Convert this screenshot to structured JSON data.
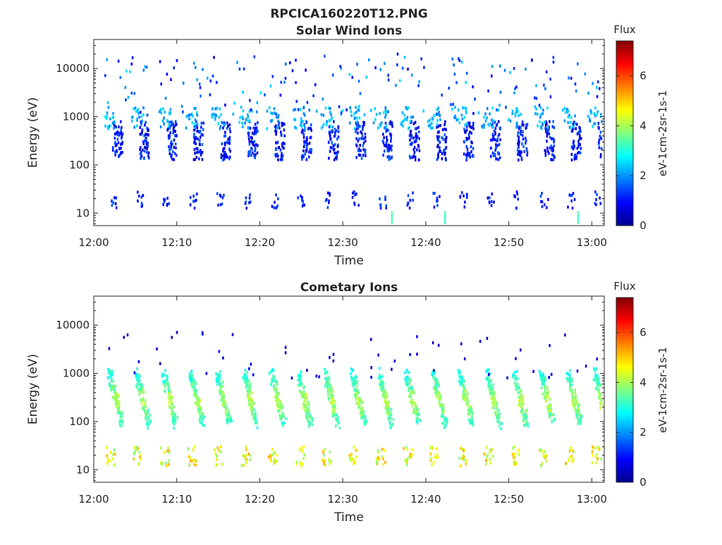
{
  "chart_data": {
    "main_title": "RPCICA160220T12.PNG",
    "panels": [
      {
        "type": "heatmap",
        "title": "Solar Wind Ions",
        "xlabel": "Time",
        "ylabel": "Energy (eV)",
        "y_scale": "log",
        "ylim": [
          5.5,
          40000
        ],
        "xlim_minutes": [
          0,
          61.5
        ],
        "x_ticks": [
          "12:00",
          "12:10",
          "12:20",
          "12:30",
          "12:40",
          "12:50",
          "13:00"
        ],
        "y_ticks": [
          "10",
          "100",
          "1000",
          "10000"
        ],
        "colorbar": {
          "title": "Flux",
          "label": "eV-1cm-2sr-1s-1",
          "range": [
            0,
            7.4
          ],
          "ticks": [
            "0",
            "2",
            "4",
            "6"
          ]
        },
        "pattern": "Periodic ion bursts roughly every 3.3 minutes at 100-1000 eV with low flux (0.5-2.5); a sparse band near 20 eV; scattered points up to 20000 eV."
      },
      {
        "type": "heatmap",
        "title": "Cometary Ions",
        "xlabel": "Time",
        "ylabel": "Energy (eV)",
        "y_scale": "log",
        "ylim": [
          5.5,
          40000
        ],
        "xlim_minutes": [
          0,
          61.5
        ],
        "x_ticks": [
          "12:00",
          "12:10",
          "12:20",
          "12:30",
          "12:40",
          "12:50",
          "13:00"
        ],
        "y_ticks": [
          "10",
          "100",
          "1000",
          "10000"
        ],
        "colorbar": {
          "title": "Flux",
          "label": "eV-1cm-2sr-1s-1",
          "range": [
            0,
            7.4
          ],
          "ticks": [
            "0",
            "2",
            "4",
            "6"
          ]
        },
        "pattern": "Dispersed cometary ion structures every ~3.3 minutes, flux 2.5-4.5, energy decreasing from ~1000 eV to ~100 eV; bright band 12-30 eV with flux 3.5-5.5."
      }
    ]
  }
}
